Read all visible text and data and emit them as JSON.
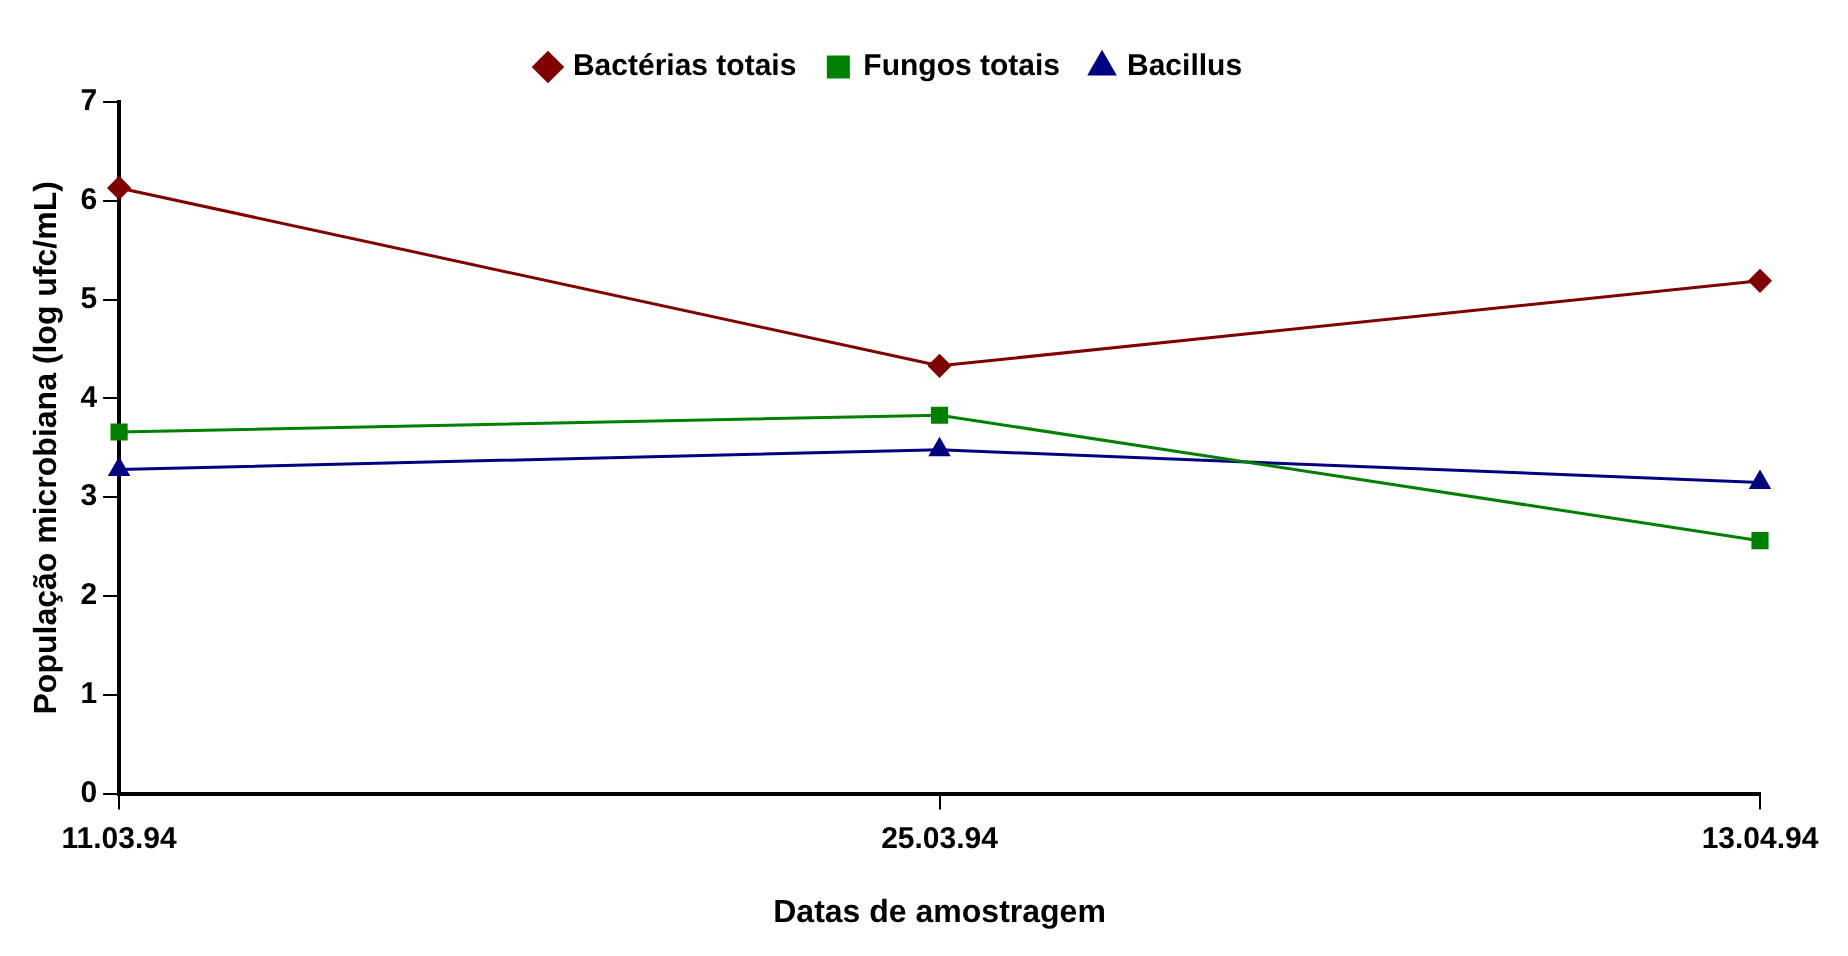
{
  "chart_data": {
    "type": "line",
    "xlabel": "Datas de amostragem",
    "ylabel": "População microbiana (log ufc/mL)",
    "categories": [
      "11.03.94",
      "25.03.94",
      "13.04.94"
    ],
    "series": [
      {
        "name": "Bactérias totais",
        "color": "#800000",
        "marker": "diamond",
        "values": [
          6.13,
          4.33,
          5.19
        ]
      },
      {
        "name": "Fungos totais",
        "color": "#008000",
        "marker": "square",
        "values": [
          3.66,
          3.83,
          2.56
        ]
      },
      {
        "name": "Bacillus",
        "color": "#000080",
        "marker": "triangle",
        "values": [
          3.28,
          3.48,
          3.15
        ]
      }
    ],
    "ylim": [
      0,
      7
    ],
    "yticks": [
      0,
      1,
      2,
      3,
      4,
      5,
      6,
      7
    ],
    "grid": false,
    "legend": "top"
  }
}
